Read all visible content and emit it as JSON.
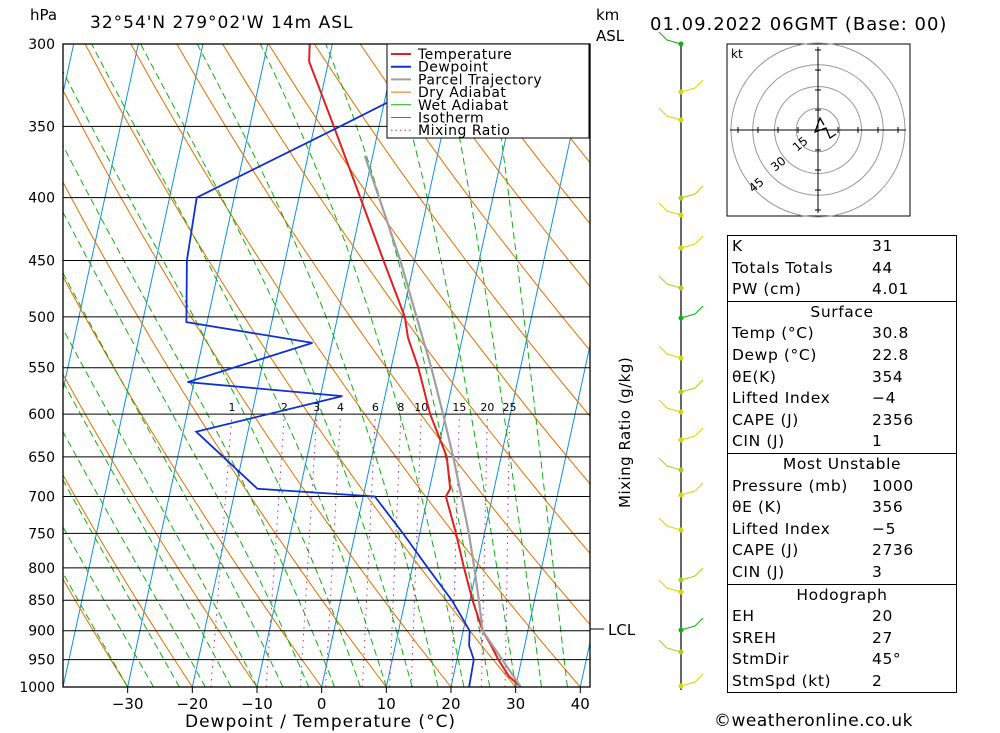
{
  "header": {
    "pressure_unit": "hPa",
    "location": "32°54'N  279°02'W  14m  ASL",
    "km_label": "km",
    "asl_label": "ASL",
    "datetime": "01.09.2022  06GMT  (Base: 00)"
  },
  "chart_data": {
    "type": "line",
    "xlabel": "Dewpoint / Temperature (°C)",
    "ylabel": "hPa",
    "pressure_ticks": [
      300,
      350,
      400,
      450,
      500,
      550,
      600,
      650,
      700,
      750,
      800,
      850,
      900,
      950,
      1000
    ],
    "temp_ticks": [
      -30,
      -20,
      -10,
      0,
      10,
      20,
      30,
      40
    ],
    "mixing_ratio_axis_label": "Mixing Ratio (g/kg)",
    "mixing_ratio_labels": [
      "1",
      "2",
      "3",
      "4",
      "6",
      "8",
      "10",
      "15",
      "20",
      "25"
    ],
    "lcl_label": "LCL",
    "lcl_pressure": 900,
    "legend": [
      "Temperature",
      "Dewpoint",
      "Parcel Trajectory",
      "Dry Adiabat",
      "Wet Adiabat",
      "Isotherm",
      "Mixing Ratio"
    ],
    "colors": {
      "temperature": "#e02020",
      "dewpoint": "#1030d0",
      "parcel": "#a0a0a0",
      "dry_adiabat": "#e07000",
      "wet_adiabat": "#10b010",
      "isotherm": "#1090e0",
      "mixing_ratio": "#c0208a"
    },
    "series": [
      {
        "name": "Temperature",
        "points": [
          [
            1000,
            30.8
          ],
          [
            980,
            28.6
          ],
          [
            950,
            26.4
          ],
          [
            925,
            24.8
          ],
          [
            900,
            23.0
          ],
          [
            850,
            20.4
          ],
          [
            800,
            18.0
          ],
          [
            750,
            15.6
          ],
          [
            700,
            12.8
          ],
          [
            690,
            13.2
          ],
          [
            650,
            11.6
          ],
          [
            600,
            7.6
          ],
          [
            550,
            4.2
          ],
          [
            520,
            1.6
          ],
          [
            500,
            0.4
          ],
          [
            450,
            -4.8
          ],
          [
            400,
            -10.5
          ],
          [
            350,
            -17.0
          ],
          [
            310,
            -23.0
          ],
          [
            300,
            -23.5
          ]
        ]
      },
      {
        "name": "Dewpoint",
        "points": [
          [
            1000,
            22.8
          ],
          [
            950,
            22.6
          ],
          [
            925,
            21.4
          ],
          [
            900,
            21.0
          ],
          [
            850,
            17.2
          ],
          [
            800,
            12.4
          ],
          [
            750,
            7.4
          ],
          [
            700,
            1.8
          ],
          [
            690,
            -16.6
          ],
          [
            620,
            -28.0
          ],
          [
            580,
            -6.6
          ],
          [
            565,
            -31.0
          ],
          [
            525,
            -13.0
          ],
          [
            505,
            -33.2
          ],
          [
            450,
            -35.2
          ],
          [
            400,
            -35.8
          ],
          [
            350,
            -16.0
          ],
          [
            305,
            4.0
          ],
          [
            300,
            -3.0
          ]
        ]
      },
      {
        "name": "Parcel Trajectory",
        "points": [
          [
            1000,
            30.8
          ],
          [
            950,
            27.0
          ],
          [
            900,
            23.0
          ],
          [
            850,
            21.4
          ],
          [
            800,
            19.6
          ],
          [
            750,
            17.6
          ],
          [
            700,
            15.2
          ],
          [
            650,
            12.6
          ],
          [
            600,
            9.6
          ],
          [
            550,
            6.2
          ],
          [
            500,
            2.2
          ],
          [
            450,
            -2.2
          ],
          [
            400,
            -7.6
          ],
          [
            370,
            -11.2
          ]
        ]
      }
    ]
  },
  "wind_profile_label": "wind barbs",
  "hodograph": {
    "unit": "kt",
    "ring_labels": [
      "15",
      "30",
      "45"
    ]
  },
  "indices": {
    "general": [
      {
        "label": "K",
        "value": "31"
      },
      {
        "label": "Totals Totals",
        "value": "44"
      },
      {
        "label": "PW (cm)",
        "value": "4.01"
      }
    ],
    "surface": {
      "title": "Surface",
      "rows": [
        {
          "label": "Temp (°C)",
          "value": "30.8"
        },
        {
          "label": "Dewp (°C)",
          "value": "22.8"
        },
        {
          "label": "θE(K)",
          "value": "354"
        },
        {
          "label": "Lifted Index",
          "value": "−4"
        },
        {
          "label": "CAPE (J)",
          "value": "2356"
        },
        {
          "label": "CIN (J)",
          "value": "1"
        }
      ]
    },
    "most_unstable": {
      "title": "Most Unstable",
      "rows": [
        {
          "label": "Pressure (mb)",
          "value": "1000"
        },
        {
          "label": "θE (K)",
          "value": "356"
        },
        {
          "label": "Lifted Index",
          "value": "−5"
        },
        {
          "label": "CAPE (J)",
          "value": "2736"
        },
        {
          "label": "CIN (J)",
          "value": "3"
        }
      ]
    },
    "hodograph": {
      "title": "Hodograph",
      "rows": [
        {
          "label": "EH",
          "value": "20"
        },
        {
          "label": "SREH",
          "value": "27"
        },
        {
          "label": "StmDir",
          "value": "45°"
        },
        {
          "label": "StmSpd (kt)",
          "value": "2"
        }
      ]
    }
  },
  "footer": {
    "copyright_symbol": "©",
    "site": "weatheronline.co.uk"
  }
}
